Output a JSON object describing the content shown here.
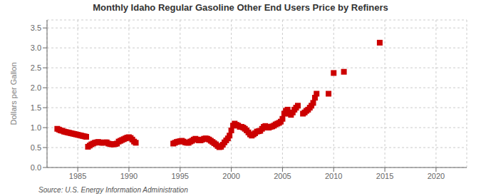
{
  "chart_data": {
    "type": "scatter",
    "title": "Monthly Idaho Regular Gasoline Other End Users Price by Refiners",
    "y_label": "Dollars per Gallon",
    "annotations": [
      "Source: U.S. Energy Information Administration"
    ],
    "color": "#cc0000",
    "marker": "square",
    "grid": true,
    "xlim": [
      1982,
      2023
    ],
    "ylim": [
      0.0,
      3.7
    ],
    "xticks": [
      1985,
      1990,
      1995,
      2000,
      2005,
      2010,
      2015,
      2020
    ],
    "yticks": [
      {
        "value": 0.0,
        "label": "0.0"
      },
      0.5,
      {
        "value": 1.0,
        "label": "1.0"
      },
      1.5,
      {
        "value": 2.0,
        "label": "2.0"
      },
      2.5,
      {
        "value": 3.0,
        "label": "3.0"
      },
      3.5
    ],
    "x": [
      1983.0,
      1983.17,
      1983.33,
      1983.5,
      1983.67,
      1983.83,
      1984.0,
      1984.17,
      1984.33,
      1984.5,
      1984.67,
      1984.83,
      1985.0,
      1985.17,
      1985.33,
      1985.5,
      1985.67,
      1985.83,
      1986.0,
      1986.17,
      1986.33,
      1986.5,
      1986.67,
      1986.83,
      1987.0,
      1987.17,
      1987.33,
      1987.5,
      1987.67,
      1987.83,
      1988.0,
      1988.17,
      1988.33,
      1988.5,
      1988.67,
      1988.83,
      1989.0,
      1989.17,
      1989.33,
      1989.5,
      1989.67,
      1989.83,
      1990.0,
      1990.17,
      1990.33,
      1990.5,
      1990.67,
      1994.33,
      1994.5,
      1994.67,
      1994.83,
      1995.0,
      1995.17,
      1995.33,
      1995.5,
      1995.67,
      1995.83,
      1996.0,
      1996.17,
      1996.33,
      1996.5,
      1996.67,
      1996.83,
      1997.0,
      1997.17,
      1997.33,
      1997.5,
      1997.67,
      1997.83,
      1998.0,
      1998.17,
      1998.33,
      1998.5,
      1998.67,
      1998.83,
      1999.0,
      1999.17,
      1999.33,
      1999.5,
      1999.67,
      1999.83,
      2000.0,
      2000.17,
      2000.33,
      2000.5,
      2000.67,
      2000.83,
      2001.0,
      2001.17,
      2001.33,
      2001.5,
      2001.67,
      2001.83,
      2002.0,
      2002.17,
      2002.33,
      2002.5,
      2002.67,
      2002.83,
      2003.0,
      2003.17,
      2003.33,
      2003.5,
      2003.67,
      2003.83,
      2004.0,
      2004.17,
      2004.33,
      2004.5,
      2004.67,
      2004.83,
      2005.0,
      2005.17,
      2005.33,
      2005.5,
      2005.67,
      2005.83,
      2006.0,
      2006.17,
      2006.33,
      2006.5,
      2007.0,
      2007.17,
      2007.33,
      2007.5,
      2007.67,
      2007.83,
      2008.0,
      2008.17,
      2008.33,
      2009.5,
      2010.0,
      2011.0,
      2014.5
    ],
    "values": [
      0.97,
      0.95,
      0.93,
      0.92,
      0.9,
      0.89,
      0.88,
      0.87,
      0.86,
      0.85,
      0.84,
      0.83,
      0.82,
      0.81,
      0.8,
      0.79,
      0.78,
      0.77,
      0.52,
      0.55,
      0.58,
      0.6,
      0.62,
      0.63,
      0.64,
      0.63,
      0.62,
      0.62,
      0.63,
      0.63,
      0.6,
      0.59,
      0.58,
      0.58,
      0.59,
      0.6,
      0.65,
      0.67,
      0.69,
      0.71,
      0.73,
      0.75,
      0.76,
      0.74,
      0.7,
      0.65,
      0.62,
      0.6,
      0.62,
      0.64,
      0.65,
      0.66,
      0.67,
      0.65,
      0.63,
      0.62,
      0.62,
      0.65,
      0.67,
      0.7,
      0.72,
      0.7,
      0.68,
      0.68,
      0.7,
      0.72,
      0.73,
      0.72,
      0.7,
      0.67,
      0.64,
      0.61,
      0.58,
      0.54,
      0.51,
      0.52,
      0.57,
      0.63,
      0.68,
      0.73,
      0.8,
      0.93,
      1.05,
      1.1,
      1.07,
      1.05,
      1.02,
      1.02,
      1.0,
      0.97,
      0.93,
      0.88,
      0.83,
      0.8,
      0.83,
      0.86,
      0.9,
      0.91,
      0.92,
      0.97,
      1.02,
      1.04,
      1.0,
      1.0,
      1.02,
      1.03,
      1.05,
      1.08,
      1.1,
      1.12,
      1.15,
      1.22,
      1.35,
      1.42,
      1.45,
      1.35,
      1.32,
      1.38,
      1.45,
      1.5,
      1.55,
      1.35,
      1.38,
      1.42,
      1.45,
      1.5,
      1.55,
      1.62,
      1.75,
      1.85,
      1.85,
      2.37,
      2.4,
      3.13
    ]
  }
}
